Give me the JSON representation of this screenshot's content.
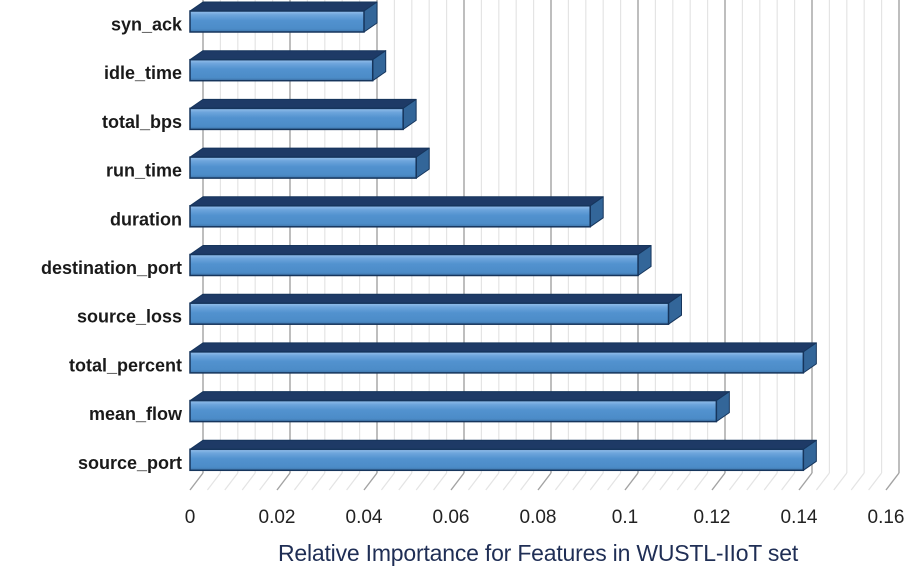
{
  "chart_data": {
    "type": "bar",
    "orientation": "horizontal",
    "style": "3d-bar",
    "title": "Relative Importance for Features in WUSTL-IIoT set",
    "xlabel": "",
    "ylabel": "",
    "categories": [
      "syn_ack",
      "idle_time",
      "total_bps",
      "run_time",
      "duration",
      "destination_port",
      "source_loss",
      "total_percent",
      "mean_flow",
      "source_port"
    ],
    "values": [
      0.04,
      0.042,
      0.049,
      0.052,
      0.092,
      0.103,
      0.11,
      0.141,
      0.121,
      0.141
    ],
    "xlim": [
      0,
      0.16
    ],
    "x_tick_step": 0.02,
    "x_minor_step": 0.004,
    "x_tick_labels": [
      "0",
      "0.02",
      "0.04",
      "0.06",
      "0.08",
      "0.1",
      "0.12",
      "0.14",
      "0.16"
    ],
    "grid": "vertical major and minor gridlines on back wall",
    "legend": "none",
    "colors": {
      "bar_front_light": "#97C1EC",
      "bar_front": "#5292CF",
      "bar_front_dark": "#3E74AA",
      "bar_side": "#336699",
      "bar_top": "#1E3A66",
      "bar_outline": "#16355C",
      "grid_major": "#A3A3A3",
      "grid_minor": "#E4E4E4",
      "tick_label_color": "#222222",
      "category_label_color": "#1A1A1A",
      "title_color": "#1F2E55",
      "background": "#FFFFFF"
    }
  }
}
